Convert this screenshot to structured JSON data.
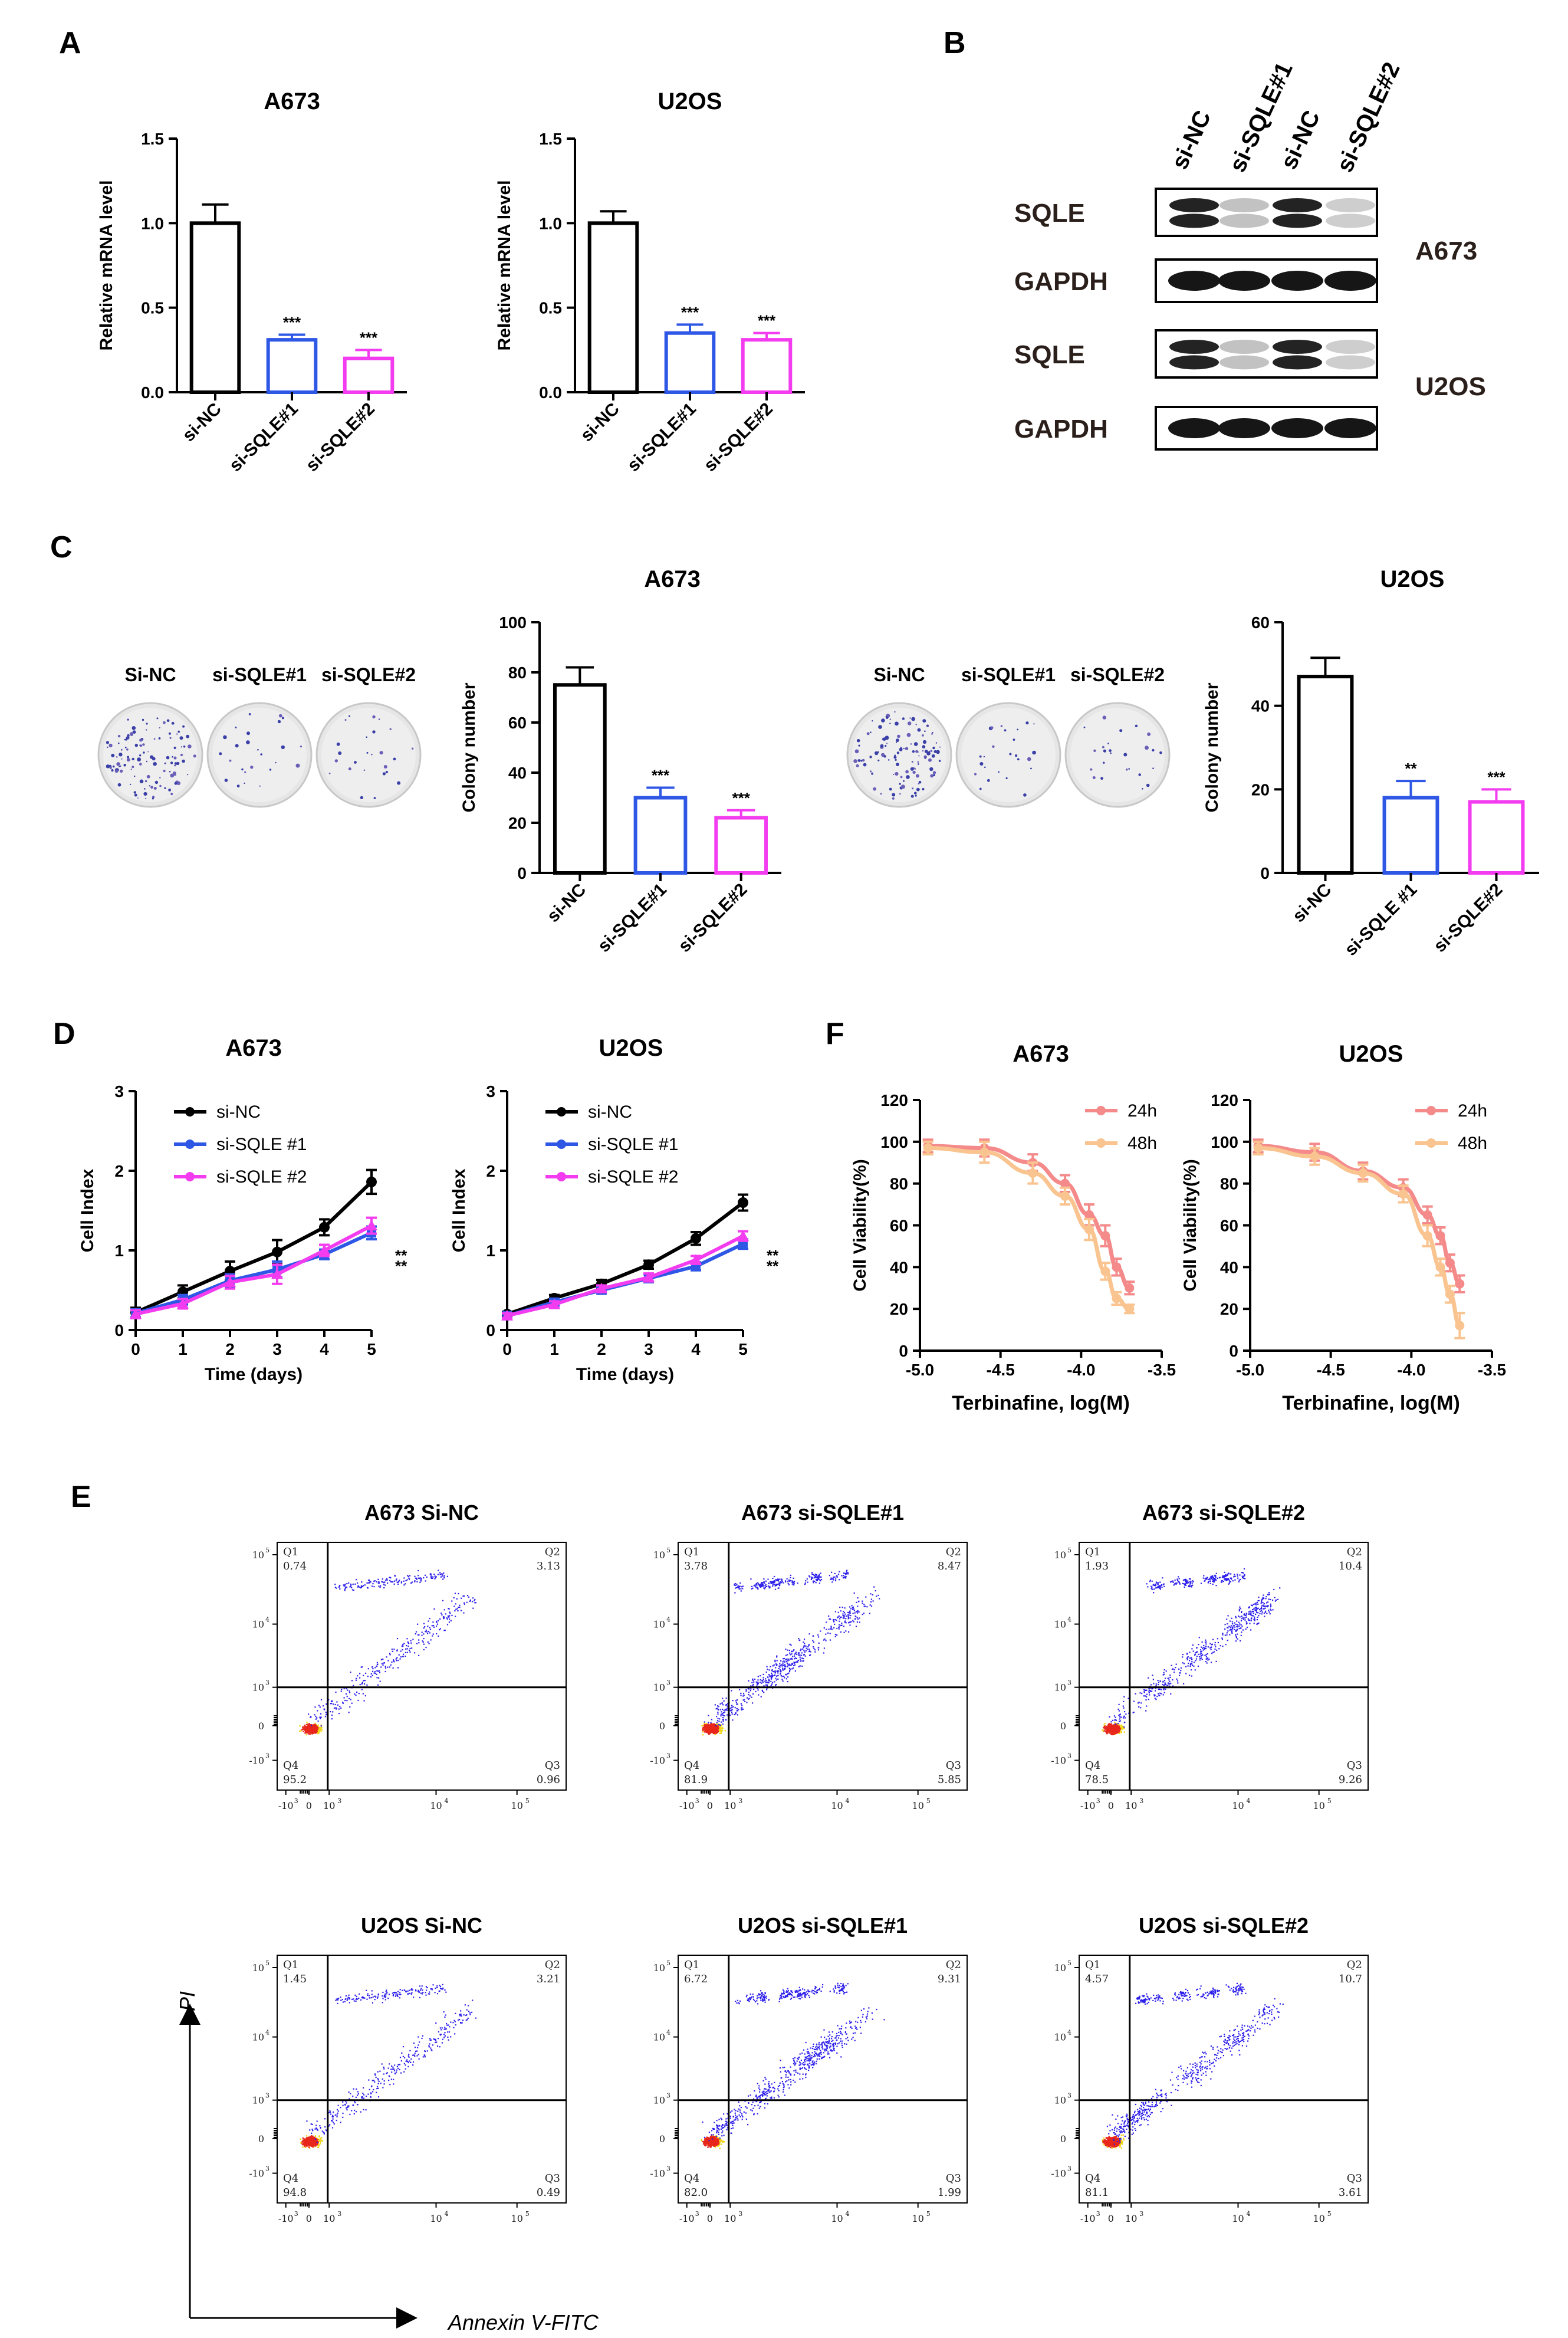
{
  "figure": {
    "panel_letters": [
      "A",
      "B",
      "C",
      "D",
      "F",
      "E"
    ]
  },
  "chart_data": [
    {
      "id": "A-A673",
      "type": "bar",
      "title": "A673",
      "ylabel": "Relative mRNA level",
      "categories": [
        "si-NC",
        "si-SQLE#1",
        "si-SQLE#2"
      ],
      "values": [
        1.0,
        0.31,
        0.2
      ],
      "errors": [
        0.11,
        0.03,
        0.05
      ],
      "significance": [
        "",
        "***",
        "***"
      ],
      "colors": [
        "#000000",
        "#2f57e6",
        "#f33cf0"
      ],
      "ylim": [
        0,
        1.5
      ],
      "yticks": [
        "0.0",
        "0.5",
        "1.0",
        "1.5"
      ]
    },
    {
      "id": "A-U2OS",
      "type": "bar",
      "title": "U2OS",
      "ylabel": "Relative mRNA level",
      "categories": [
        "si-NC",
        "si-SQLE#1",
        "si-SQLE#2"
      ],
      "values": [
        1.0,
        0.35,
        0.31
      ],
      "errors": [
        0.07,
        0.05,
        0.04
      ],
      "significance": [
        "",
        "***",
        "***"
      ],
      "colors": [
        "#000000",
        "#2f57e6",
        "#f33cf0"
      ],
      "ylim": [
        0,
        1.5
      ],
      "yticks": [
        "0.0",
        "0.5",
        "1.0",
        "1.5"
      ]
    },
    {
      "id": "C-A673",
      "type": "bar",
      "title": "A673",
      "ylabel": "Colony number",
      "categories": [
        "si-NC",
        "si-SQLE#1",
        "si-SQLE#2"
      ],
      "values": [
        75,
        30,
        22
      ],
      "errors": [
        7,
        4,
        3
      ],
      "significance": [
        "",
        "***",
        "***"
      ],
      "colors": [
        "#000000",
        "#2f57e6",
        "#f33cf0"
      ],
      "ylim": [
        0,
        100
      ],
      "yticks": [
        "0",
        "20",
        "40",
        "60",
        "80",
        "100"
      ]
    },
    {
      "id": "C-U2OS",
      "type": "bar",
      "title": "U2OS",
      "ylabel": "Colony number",
      "categories": [
        "si-NC",
        "si-SQLE #1",
        "si-SQLE#2"
      ],
      "values": [
        47,
        18,
        17
      ],
      "errors": [
        4.5,
        4,
        3
      ],
      "significance": [
        "",
        "**",
        "***"
      ],
      "colors": [
        "#000000",
        "#2f57e6",
        "#f33cf0"
      ],
      "ylim": [
        0,
        60
      ],
      "yticks": [
        "0",
        "20",
        "40",
        "60"
      ]
    },
    {
      "id": "D-A673",
      "type": "line",
      "title": "A673",
      "xlabel": "Time (days)",
      "ylabel": "Cell Index",
      "x": [
        0,
        1,
        2,
        3,
        4,
        5
      ],
      "xlim": [
        0,
        5
      ],
      "ylim": [
        0,
        3
      ],
      "xticks": [
        "0",
        "1",
        "2",
        "3",
        "4",
        "5"
      ],
      "yticks": [
        "0",
        "1",
        "2",
        "3"
      ],
      "series": [
        {
          "name": "si-NC",
          "color": "#000000",
          "values": [
            0.22,
            0.48,
            0.74,
            0.98,
            1.29,
            1.86
          ],
          "errors": [
            0.06,
            0.08,
            0.12,
            0.15,
            0.1,
            0.15
          ]
        },
        {
          "name": "si-SQLE #1",
          "color": "#2f57e6",
          "values": [
            0.21,
            0.38,
            0.62,
            0.76,
            0.95,
            1.22
          ],
          "errors": [
            0.05,
            0.06,
            0.08,
            0.1,
            0.06,
            0.08
          ]
        },
        {
          "name": "si-SQLE #2",
          "color": "#f33cf0",
          "values": [
            0.2,
            0.33,
            0.6,
            0.7,
            1.0,
            1.31
          ],
          "errors": [
            0.05,
            0.06,
            0.08,
            0.12,
            0.07,
            0.1
          ]
        }
      ],
      "significance": [
        "**",
        "**"
      ],
      "legend": "top-left"
    },
    {
      "id": "D-U2OS",
      "type": "line",
      "title": "U2OS",
      "xlabel": "Time (days)",
      "ylabel": "Cell Index",
      "x": [
        0,
        1,
        2,
        3,
        4,
        5
      ],
      "xlim": [
        0,
        5
      ],
      "ylim": [
        0,
        3
      ],
      "xticks": [
        "0",
        "1",
        "2",
        "3",
        "4",
        "5"
      ],
      "yticks": [
        "0",
        "1",
        "2",
        "3"
      ],
      "series": [
        {
          "name": "si-NC",
          "color": "#000000",
          "values": [
            0.2,
            0.4,
            0.58,
            0.82,
            1.15,
            1.6
          ],
          "errors": [
            0.03,
            0.04,
            0.05,
            0.05,
            0.08,
            0.1
          ]
        },
        {
          "name": "si-SQLE #1",
          "color": "#2f57e6",
          "values": [
            0.18,
            0.35,
            0.5,
            0.65,
            0.8,
            1.08
          ],
          "errors": [
            0.03,
            0.04,
            0.04,
            0.05,
            0.05,
            0.06
          ]
        },
        {
          "name": "si-SQLE #2",
          "color": "#f33cf0",
          "values": [
            0.18,
            0.32,
            0.52,
            0.66,
            0.88,
            1.18
          ],
          "errors": [
            0.03,
            0.04,
            0.04,
            0.05,
            0.05,
            0.06
          ]
        }
      ],
      "significance": [
        "**",
        "**"
      ],
      "legend": "top-left"
    },
    {
      "id": "F-A673",
      "type": "line",
      "title": "A673",
      "xlabel": "Terbinafine, log(M)",
      "ylabel": "Cell Viability(%)",
      "xlim": [
        -5.0,
        -3.5
      ],
      "ylim": [
        0,
        120
      ],
      "xticks": [
        "-5.0",
        "-4.5",
        "-4.0",
        "-3.5"
      ],
      "yticks": [
        "0",
        "20",
        "40",
        "60",
        "80",
        "100",
        "120"
      ],
      "series": [
        {
          "name": "24h",
          "color": "#f48a8a",
          "x": [
            -4.95,
            -4.6,
            -4.3,
            -4.1,
            -3.95,
            -3.85,
            -3.78,
            -3.7
          ],
          "values": [
            98,
            97,
            90,
            80,
            65,
            55,
            40,
            30
          ],
          "errors": [
            3,
            4,
            4,
            4,
            5,
            5,
            4,
            3
          ]
        },
        {
          "name": "48h",
          "color": "#f9c48f",
          "x": [
            -4.95,
            -4.6,
            -4.3,
            -4.1,
            -3.95,
            -3.85,
            -3.78,
            -3.7
          ],
          "values": [
            97,
            95,
            85,
            74,
            58,
            38,
            25,
            20
          ],
          "errors": [
            3,
            5,
            5,
            4,
            5,
            4,
            3,
            2
          ]
        }
      ],
      "legend": "top-right"
    },
    {
      "id": "F-U2OS",
      "type": "line",
      "title": "U2OS",
      "xlabel": "Terbinafine, log(M)",
      "ylabel": "Cell Viability(%)",
      "xlim": [
        -5.0,
        -3.5
      ],
      "ylim": [
        0,
        120
      ],
      "xticks": [
        "-5.0",
        "-4.5",
        "-4.0",
        "-3.5"
      ],
      "yticks": [
        "0",
        "20",
        "40",
        "60",
        "80",
        "100",
        "120"
      ],
      "series": [
        {
          "name": "24h",
          "color": "#f48a8a",
          "x": [
            -4.95,
            -4.6,
            -4.3,
            -4.05,
            -3.9,
            -3.82,
            -3.76,
            -3.7
          ],
          "values": [
            98,
            95,
            86,
            78,
            65,
            55,
            42,
            32
          ],
          "errors": [
            3,
            4,
            4,
            4,
            4,
            4,
            4,
            4
          ]
        },
        {
          "name": "48h",
          "color": "#f9c48f",
          "x": [
            -4.95,
            -4.6,
            -4.3,
            -4.05,
            -3.9,
            -3.82,
            -3.76,
            -3.7
          ],
          "values": [
            97,
            93,
            85,
            75,
            55,
            40,
            27,
            12
          ],
          "errors": [
            3,
            4,
            4,
            4,
            5,
            4,
            4,
            6
          ]
        }
      ],
      "legend": "top-right"
    }
  ],
  "western_blot": {
    "lanes": [
      "si-NC",
      "si-SQLE#1",
      "si-NC",
      "si-SQLE#2"
    ],
    "proteins": [
      "SQLE",
      "GAPDH",
      "SQLE",
      "GAPDH"
    ],
    "cell_lines": [
      "A673",
      "U2OS"
    ],
    "intensities": {
      "SQLE": [
        0.9,
        0.25,
        0.9,
        0.2
      ],
      "GAPDH": [
        0.95,
        0.95,
        0.95,
        0.95
      ]
    }
  },
  "colony_plates": [
    {
      "label": "Si-NC",
      "colonies": "many"
    },
    {
      "label": "si-SQLE#1",
      "colonies": "few"
    },
    {
      "label": "si-SQLE#2",
      "colonies": "few"
    },
    {
      "label": "Si-NC",
      "colonies": "many"
    },
    {
      "label": "si-SQLE#1",
      "colonies": "few"
    },
    {
      "label": "si-SQLE#2",
      "colonies": "few"
    }
  ],
  "flow_cytometry": {
    "plots": [
      {
        "title": "A673 Si-NC",
        "q1": "0.74",
        "q2": "3.13",
        "q3": "0.96",
        "q4": "95.2",
        "density": 0.5
      },
      {
        "title": "A673 si-SQLE#1",
        "q1": "3.78",
        "q2": "8.47",
        "q3": "5.85",
        "q4": "81.9",
        "density": 1.0
      },
      {
        "title": "A673 si-SQLE#2",
        "q1": "1.93",
        "q2": "10.4",
        "q3": "9.26",
        "q4": "78.5",
        "density": 0.9
      },
      {
        "title": "U2OS Si-NC",
        "q1": "1.45",
        "q2": "3.21",
        "q3": "0.49",
        "q4": "94.8",
        "density": 0.5
      },
      {
        "title": "U2OS si-SQLE#1",
        "q1": "6.72",
        "q2": "9.31",
        "q3": "1.99",
        "q4": "82.0",
        "density": 1.0
      },
      {
        "title": "U2OS si-SQLE#2",
        "q1": "4.57",
        "q2": "10.7",
        "q3": "3.61",
        "q4": "81.1",
        "density": 0.9
      }
    ],
    "quadrant_names": [
      "Q1",
      "Q2",
      "Q3",
      "Q4"
    ],
    "x_ticks": [
      "-10",
      "0",
      "10",
      "10",
      "10"
    ],
    "x_tick_exps": [
      "3",
      "",
      "3",
      "4",
      "5"
    ],
    "y_ticks": [
      "10",
      "10",
      "10",
      "0",
      "-10"
    ],
    "y_tick_exps": [
      "5",
      "4",
      "3",
      "",
      "3"
    ],
    "y_axis_label": "PI",
    "x_axis_label": "Annexin V-FITC"
  }
}
